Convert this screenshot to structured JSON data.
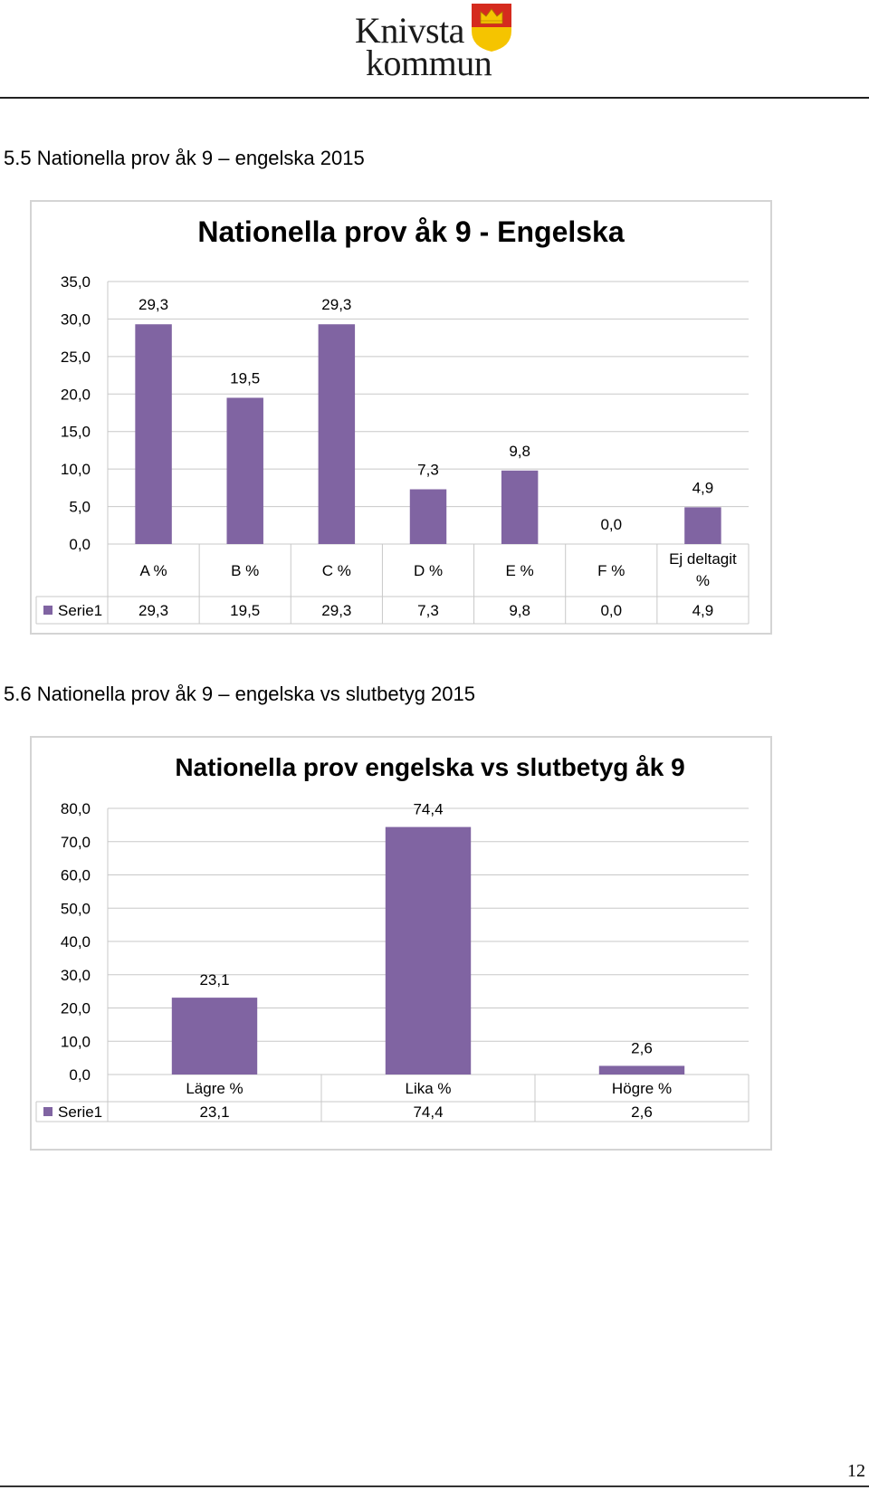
{
  "header": {
    "logo_line1": "Knivsta",
    "logo_line2": "kommun",
    "logo_colors": {
      "shield_top": "#d52b1e",
      "shield_bottom": "#f5c400",
      "crown": "#f5c400"
    }
  },
  "sections": [
    {
      "heading": "5.5 Nationella prov åk 9 – engelska 2015"
    },
    {
      "heading": "5.6 Nationella prov åk 9 – engelska vs slutbetyg 2015"
    }
  ],
  "chart_data": [
    {
      "type": "bar",
      "title": "Nationella prov åk 9 - Engelska",
      "categories": [
        "A %",
        "B %",
        "C %",
        "D %",
        "E %",
        "F %",
        "Ej deltagit %"
      ],
      "series": [
        {
          "name": "Serie1",
          "values": [
            29.3,
            19.5,
            29.3,
            7.3,
            9.8,
            0.0,
            4.9
          ],
          "value_labels": [
            "29,3",
            "19,5",
            "29,3",
            "7,3",
            "9,8",
            "0,0",
            "4,9"
          ]
        }
      ],
      "ylim": [
        0,
        35
      ],
      "yticks": [
        "0,0",
        "5,0",
        "10,0",
        "15,0",
        "20,0",
        "25,0",
        "30,0",
        "35,0"
      ],
      "grid": true,
      "legend": "data-table",
      "bar_color": "#8064a2"
    },
    {
      "type": "bar",
      "title": "Nationella prov engelska vs slutbetyg åk 9",
      "categories": [
        "Lägre %",
        "Lika %",
        "Högre %"
      ],
      "series": [
        {
          "name": "Serie1",
          "values": [
            23.1,
            74.4,
            2.6
          ],
          "value_labels": [
            "23,1",
            "74,4",
            "2,6"
          ]
        }
      ],
      "ylim": [
        0,
        80
      ],
      "yticks": [
        "0,0",
        "10,0",
        "20,0",
        "30,0",
        "40,0",
        "50,0",
        "60,0",
        "70,0",
        "80,0"
      ],
      "grid": true,
      "legend": "data-table",
      "bar_color": "#8064a2"
    }
  ],
  "footer": {
    "page_number": "12"
  }
}
